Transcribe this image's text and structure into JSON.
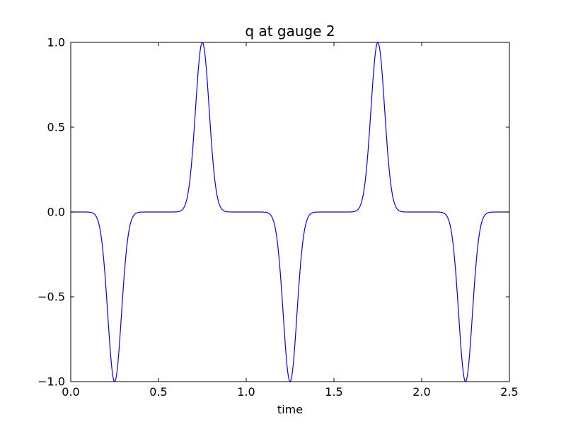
{
  "figure": {
    "background_color": "#ffffff",
    "axes_background_color": "#ffffff",
    "spine_color": "#000000"
  },
  "chart_data": {
    "type": "line",
    "title": "q at gauge 2",
    "xlabel": "time",
    "ylabel": "",
    "xlim": [
      0.0,
      2.5
    ],
    "ylim": [
      -1.0,
      1.0
    ],
    "grid": false,
    "legend": null,
    "xticks": {
      "values": [
        0.0,
        0.5,
        1.0,
        1.5,
        2.0,
        2.5
      ],
      "labels": [
        "0.0",
        "0.5",
        "1.0",
        "1.5",
        "2.0",
        "2.5"
      ]
    },
    "yticks": {
      "values": [
        1.0,
        0.5,
        0.0,
        -0.5,
        -1.0
      ],
      "labels": [
        "1.0",
        "0.5",
        "0.0",
        "−0.5",
        "−1.0"
      ]
    },
    "series": [
      {
        "name": "q at gauge 2",
        "color": "#0000ff",
        "line_width": 1.2,
        "baseline": 0.0,
        "model": "sum_of_gaussians",
        "gaussian_decay_beta": 330,
        "sample_step": 0.0025,
        "pulses": [
          {
            "center": 0.25,
            "amplitude": -1.0
          },
          {
            "center": 0.75,
            "amplitude": 1.0
          },
          {
            "center": 1.25,
            "amplitude": -1.0
          },
          {
            "center": 1.75,
            "amplitude": 1.0
          },
          {
            "center": 2.25,
            "amplitude": -1.0
          }
        ]
      }
    ],
    "key_points": [
      {
        "t": 0.0,
        "q": 0.0
      },
      {
        "t": 0.25,
        "q": -1.0
      },
      {
        "t": 0.5,
        "q": 0.0
      },
      {
        "t": 0.75,
        "q": 1.0
      },
      {
        "t": 1.0,
        "q": 0.0
      },
      {
        "t": 1.25,
        "q": -1.0
      },
      {
        "t": 1.5,
        "q": 0.0
      },
      {
        "t": 1.75,
        "q": 1.0
      },
      {
        "t": 2.0,
        "q": 0.0
      },
      {
        "t": 2.25,
        "q": -1.0
      },
      {
        "t": 2.5,
        "q": 0.0
      }
    ]
  }
}
